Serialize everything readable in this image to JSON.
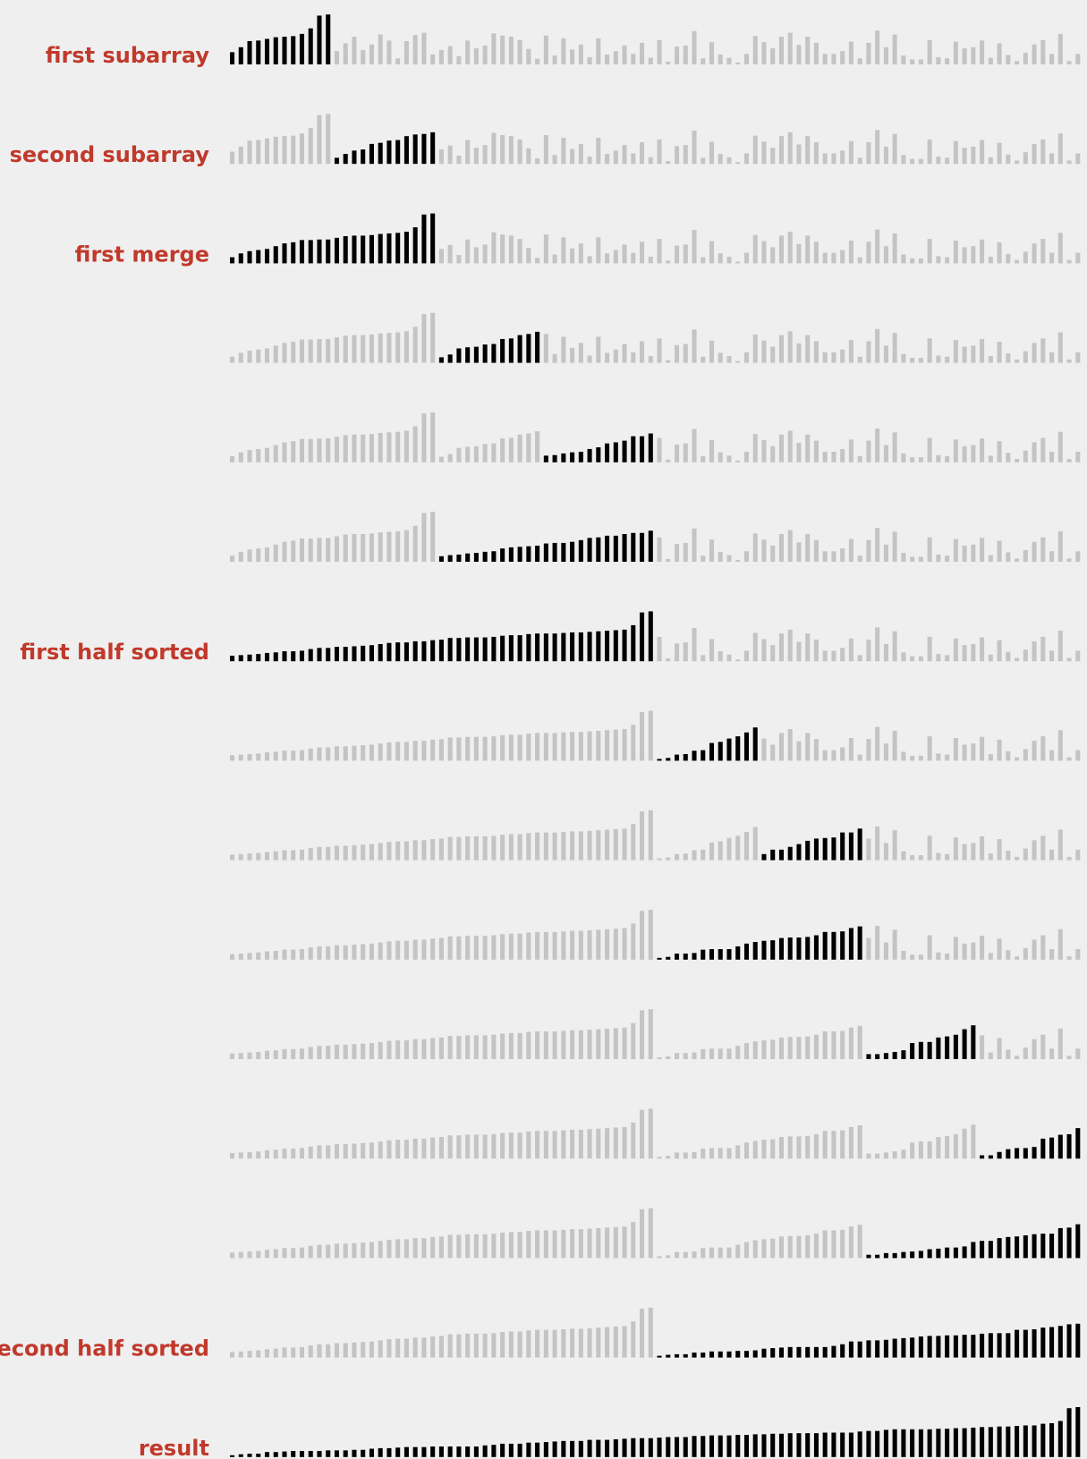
{
  "title": "",
  "colors": {
    "background": "#efefef",
    "label": "#c0392b",
    "active_bar": "#000000",
    "inactive_bar": "#c4c4c4"
  },
  "chart_data": {
    "type": "bar",
    "description": "Mergesort trace: each row shows the array state; black bars mark the subarray just processed, gray bars the rest.",
    "n": 98,
    "rows": [
      {
        "label": "first subarray",
        "active": [
          0,
          12
        ]
      },
      {
        "label": "second subarray",
        "active": [
          12,
          24
        ]
      },
      {
        "label": "first merge",
        "active": [
          0,
          24
        ]
      },
      {
        "label": "",
        "active": [
          24,
          36
        ]
      },
      {
        "label": "",
        "active": [
          36,
          49
        ]
      },
      {
        "label": "",
        "active": [
          24,
          49
        ]
      },
      {
        "label": "first half sorted",
        "active": [
          0,
          49
        ]
      },
      {
        "label": "",
        "active": [
          49,
          61
        ]
      },
      {
        "label": "",
        "active": [
          61,
          73
        ]
      },
      {
        "label": "",
        "active": [
          49,
          73
        ]
      },
      {
        "label": "",
        "active": [
          73,
          86
        ]
      },
      {
        "label": "",
        "active": [
          86,
          98
        ]
      },
      {
        "label": "",
        "active": [
          73,
          98
        ]
      },
      {
        "label": "second half sorted",
        "active": [
          49,
          98
        ]
      },
      {
        "label": "result",
        "active": [
          0,
          98
        ]
      }
    ],
    "initial_values": [
      22,
      42,
      50,
      43,
      49,
      31,
      51,
      55,
      46,
      65,
      88,
      90,
      24,
      38,
      50,
      26,
      36,
      54,
      43,
      11,
      42,
      53,
      57,
      18,
      26,
      33,
      15,
      43,
      29,
      34,
      56,
      52,
      50,
      44,
      28,
      10,
      52,
      16,
      47,
      27,
      36,
      13,
      47,
      18,
      24,
      34,
      19,
      39,
      12,
      44,
      5,
      32,
      34,
      60,
      11,
      40,
      18,
      12,
      1,
      19,
      51,
      40,
      29,
      50,
      57,
      35,
      50,
      39,
      19,
      19,
      24,
      41,
      11,
      39,
      61,
      31,
      54,
      16,
      9,
      9,
      44,
      13,
      11,
      41,
      29,
      31,
      43,
      12,
      38,
      17,
      6,
      21,
      36,
      44,
      19,
      55,
      6,
      19
    ],
    "ylim": [
      0,
      100
    ]
  }
}
